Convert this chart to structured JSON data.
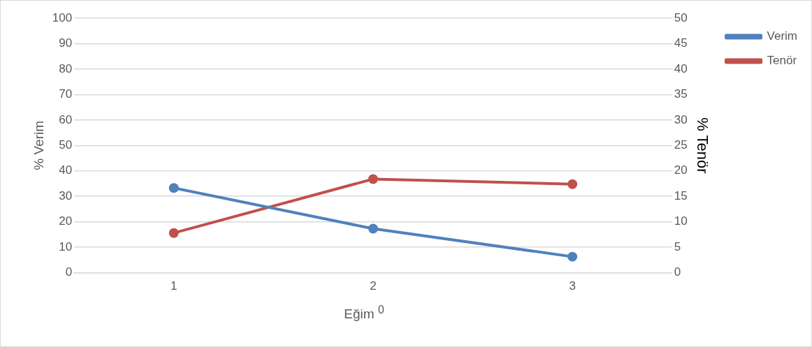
{
  "chart_data": {
    "type": "line",
    "categories": [
      "1",
      "2",
      "3"
    ],
    "xlabel": "Eğim $^{0}$",
    "ylabel": "% Verim",
    "y2label": "% Tenör",
    "series": [
      {
        "name": "Verim",
        "color": "#4f81bd",
        "values": [
          33.3,
          17.3,
          6.3
        ]
      },
      {
        "name": "Tenör",
        "color": "#c0504d",
        "values": [
          7.8,
          18.4,
          17.4
        ],
        "axis": "y2"
      }
    ],
    "ylim": [
      0,
      100
    ],
    "yticks": [
      0,
      10,
      20,
      30,
      40,
      50,
      60,
      70,
      80,
      90,
      100
    ],
    "y2lim": [
      0,
      50
    ],
    "y2ticks": [
      0,
      5,
      10,
      15,
      20,
      25,
      30,
      35,
      40,
      45,
      50
    ],
    "grid": "y",
    "legend": "top right",
    "marker": "circle",
    "line_style": "solid"
  }
}
